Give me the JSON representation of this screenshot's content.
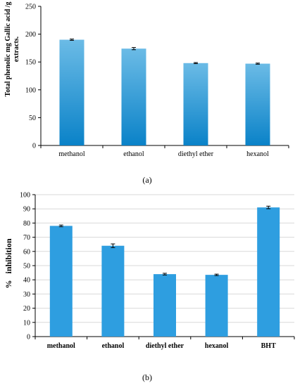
{
  "colors": {
    "bar_top": "#6bbbe6",
    "bar_bottom": "#0a82c8",
    "bar_flat": "#2e9ee0",
    "axis": "#000000",
    "grid": "#d9d9d9"
  },
  "chart_data": [
    {
      "type": "bar",
      "caption": "(a)",
      "ylabel": "Total phenolic mg Gallic acid /g extracts.",
      "xlabel": "",
      "categories": [
        "methanol",
        "ethanol",
        "diethyl ether",
        "hexanol"
      ],
      "values": [
        190,
        174,
        148,
        147
      ],
      "errors": [
        1.2,
        2.0,
        1.0,
        1.0
      ],
      "ylim": [
        0,
        250
      ],
      "yticks": [
        0,
        50,
        100,
        150,
        200,
        250
      ],
      "grid": false,
      "legend": "none",
      "fill": "gradient"
    },
    {
      "type": "bar",
      "caption": "(b)",
      "ylabel": "%   inhibition",
      "xlabel": "",
      "categories": [
        "methanol",
        "ethanol",
        "diethyl ether",
        "hexanol",
        "BHT"
      ],
      "values": [
        78,
        64,
        44,
        43.5,
        91
      ],
      "errors": [
        0.6,
        1.3,
        0.6,
        0.5,
        0.9
      ],
      "ylim": [
        0,
        100
      ],
      "yticks": [
        0,
        10,
        20,
        30,
        40,
        50,
        60,
        70,
        80,
        90,
        100
      ],
      "grid": true,
      "legend": "none",
      "fill": "flat"
    }
  ]
}
